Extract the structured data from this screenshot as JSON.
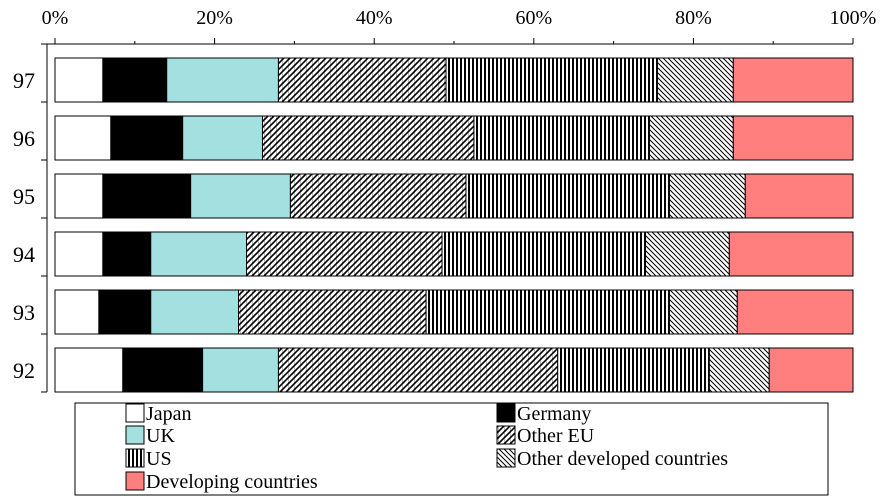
{
  "chart_data": {
    "type": "bar",
    "orientation": "horizontal",
    "stacked": "percent",
    "title": "",
    "xlabel": "",
    "ylabel": "",
    "xlim": [
      0,
      100
    ],
    "x_ticks": [
      "0%",
      "20%",
      "40%",
      "60%",
      "80%",
      "100%"
    ],
    "categories": [
      "97",
      "96",
      "95",
      "94",
      "93",
      "92"
    ],
    "legend_position": "bottom",
    "series": [
      {
        "name": "Japan",
        "color": "#ffffff",
        "pattern": "none",
        "values": [
          6,
          7,
          6,
          6,
          5.5,
          8.5
        ]
      },
      {
        "name": "Germany",
        "color": "#000000",
        "pattern": "none",
        "values": [
          8,
          9,
          11,
          6,
          6.5,
          10
        ]
      },
      {
        "name": "UK",
        "color": "#a5e0e0",
        "pattern": "none",
        "values": [
          14,
          10,
          12.5,
          12,
          11,
          9.5
        ]
      },
      {
        "name": "Other EU",
        "color": "#ffffff",
        "pattern": "diagonal-grid",
        "values": [
          21,
          26.5,
          22,
          24.5,
          23.5,
          35
        ]
      },
      {
        "name": "US",
        "color": "#ffffff",
        "pattern": "vertical-stripes",
        "values": [
          26.5,
          22,
          25.5,
          25.5,
          30.5,
          19
        ]
      },
      {
        "name": "Other developed countries",
        "color": "#ffffff",
        "pattern": "diagonal-stripes",
        "values": [
          9.5,
          10.5,
          9.5,
          10.5,
          8.5,
          7.5
        ]
      },
      {
        "name": "Developing countries",
        "color": "#ff7f7f",
        "pattern": "none",
        "values": [
          15,
          15,
          13.5,
          15.5,
          14.5,
          10.5
        ]
      }
    ]
  }
}
